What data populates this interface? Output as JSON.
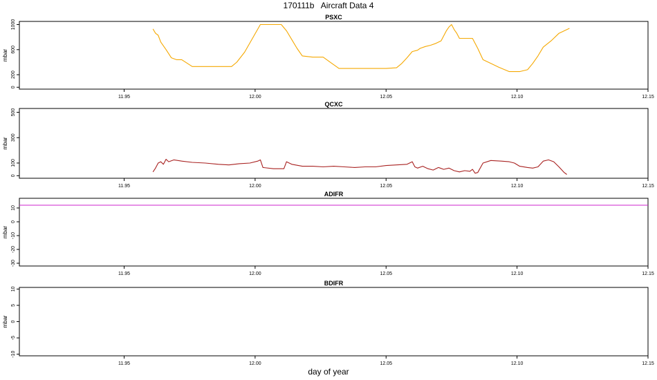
{
  "title": "170111b   Aircraft Data 4",
  "xlabel": "day of year",
  "colors": {
    "PSXC": "#f5a800",
    "QCXC": "#a8201f",
    "ADIFR": "#cc22cc",
    "BDIFR": "#000000",
    "axis": "#000000"
  },
  "chart_data": [
    {
      "type": "line",
      "title": "PSXC",
      "ylabel": "mbar",
      "xlim": [
        11.91,
        12.15
      ],
      "ylim": [
        -30,
        1050
      ],
      "yticks": [
        0,
        200,
        600,
        1000
      ],
      "xticks": [
        11.95,
        12.0,
        12.05,
        12.1,
        12.15
      ],
      "xtick_labels": [
        "11.95",
        "12.00",
        "12.05",
        "12.10",
        "12.15"
      ],
      "series": [
        {
          "x": [
            11.961,
            11.962,
            11.963,
            11.964,
            11.966,
            11.968,
            11.97,
            11.972,
            11.976,
            11.98,
            11.985,
            11.991,
            11.993,
            11.996,
            11.999,
            12.002,
            12.005,
            12.01,
            12.012,
            12.014,
            12.016,
            12.018,
            12.022,
            12.026,
            12.029,
            12.031,
            12.032,
            12.035,
            12.04,
            12.045,
            12.05,
            12.054,
            12.056,
            12.058,
            12.06,
            12.062,
            12.063,
            12.065,
            12.067,
            12.069,
            12.071,
            12.073,
            12.074,
            12.075,
            12.076,
            12.077,
            12.078,
            12.08,
            12.083,
            12.085,
            12.087,
            12.09,
            12.093,
            12.097,
            12.101,
            12.104,
            12.106,
            12.108,
            12.11,
            12.113,
            12.116,
            12.12
          ],
          "y": [
            930,
            860,
            830,
            720,
            600,
            470,
            440,
            440,
            330,
            330,
            330,
            330,
            400,
            560,
            780,
            1000,
            1000,
            1000,
            900,
            760,
            620,
            500,
            480,
            480,
            390,
            330,
            300,
            300,
            300,
            300,
            300,
            310,
            380,
            470,
            570,
            590,
            620,
            650,
            670,
            700,
            740,
            900,
            960,
            1000,
            920,
            860,
            780,
            780,
            780,
            620,
            440,
            380,
            320,
            250,
            250,
            280,
            380,
            500,
            640,
            740,
            860,
            940
          ]
        }
      ]
    },
    {
      "type": "line",
      "title": "QCXC",
      "ylabel": "mbar",
      "xlim": [
        11.91,
        12.15
      ],
      "ylim": [
        -20,
        530
      ],
      "yticks": [
        0,
        100,
        300,
        500
      ],
      "xticks": [
        11.95,
        12.0,
        12.05,
        12.1,
        12.15
      ],
      "xtick_labels": [
        "11.95",
        "12.00",
        "12.05",
        "12.10",
        "12.15"
      ],
      "series": [
        {
          "x": [
            11.961,
            11.962,
            11.963,
            11.964,
            11.965,
            11.966,
            11.967,
            11.969,
            11.972,
            11.976,
            11.981,
            11.986,
            11.99,
            11.994,
            11.998,
            12.001,
            12.002,
            12.003,
            12.007,
            12.011,
            12.012,
            12.014,
            12.018,
            12.022,
            12.026,
            12.03,
            12.034,
            12.038,
            12.042,
            12.046,
            12.05,
            12.054,
            12.058,
            12.06,
            12.061,
            12.062,
            12.064,
            12.066,
            12.068,
            12.07,
            12.072,
            12.074,
            12.076,
            12.078,
            12.08,
            12.082,
            12.083,
            12.084,
            12.085,
            12.087,
            12.09,
            12.094,
            12.097,
            12.099,
            12.101,
            12.104,
            12.106,
            12.108,
            12.11,
            12.112,
            12.114,
            12.116,
            12.118,
            12.119
          ],
          "y": [
            30,
            60,
            100,
            110,
            90,
            130,
            110,
            125,
            115,
            105,
            100,
            90,
            85,
            95,
            100,
            115,
            125,
            65,
            55,
            55,
            110,
            90,
            75,
            75,
            70,
            75,
            70,
            65,
            70,
            70,
            80,
            85,
            90,
            110,
            70,
            60,
            75,
            55,
            45,
            65,
            50,
            60,
            40,
            30,
            40,
            35,
            50,
            20,
            25,
            100,
            120,
            115,
            110,
            100,
            75,
            65,
            60,
            70,
            115,
            125,
            110,
            70,
            25,
            10
          ]
        }
      ]
    },
    {
      "type": "line",
      "title": "ADIFR",
      "ylabel": "mbar",
      "xlim": [
        11.91,
        12.15
      ],
      "ylim": [
        -32,
        17
      ],
      "yticks": [
        -30,
        -20,
        -10,
        0,
        10
      ],
      "xticks": [
        11.95,
        12.0,
        12.05,
        12.1,
        12.15
      ],
      "xtick_labels": [
        "11.95",
        "12.00",
        "12.05",
        "12.10",
        "12.15"
      ],
      "series": [
        {
          "x": [
            11.91,
            12.15
          ],
          "y": [
            12,
            12
          ]
        }
      ]
    },
    {
      "type": "line",
      "title": "BDIFR",
      "ylabel": "mbar",
      "xlim": [
        11.91,
        12.15
      ],
      "ylim": [
        -10.5,
        10.5
      ],
      "yticks": [
        -10,
        -5,
        0,
        5,
        10
      ],
      "xticks": [
        11.95,
        12.0,
        12.05,
        12.1,
        12.15
      ],
      "xtick_labels": [
        "11.95",
        "12.00",
        "12.05",
        "12.10",
        "12.15"
      ],
      "series": []
    }
  ]
}
